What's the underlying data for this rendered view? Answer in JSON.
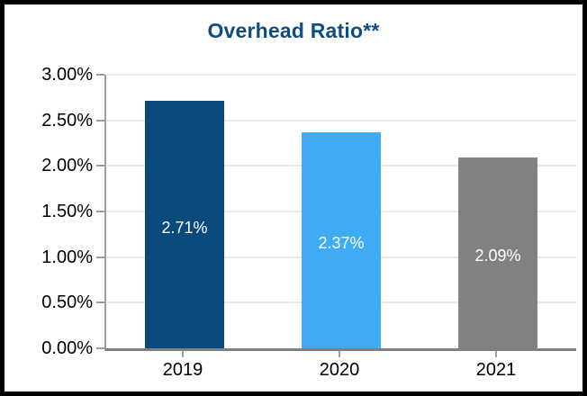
{
  "window": {
    "background_color": "#ffffff",
    "frame_color": "#000000"
  },
  "chart_data": {
    "type": "bar",
    "title": "Overhead Ratio**",
    "title_color": "#0f4c80",
    "categories": [
      "2019",
      "2020",
      "2021"
    ],
    "values": [
      2.71,
      2.37,
      2.09
    ],
    "value_labels": [
      "2.71%",
      "2.37%",
      "2.09%"
    ],
    "bar_colors": [
      "#094a7d",
      "#3fabf5",
      "#818181"
    ],
    "bar_label_color": "#ffffff",
    "xlabel": "",
    "ylabel": "",
    "y_axis": {
      "min": 0,
      "max": 3.0,
      "step": 0.5,
      "tick_labels": [
        "0.00%",
        "0.50%",
        "1.00%",
        "1.50%",
        "2.00%",
        "2.50%",
        "3.00%"
      ]
    },
    "grid": true,
    "gridline_color": "#e9e9e9",
    "axis_color": "#808080",
    "tick_color": "#9c9c9c",
    "legend": false
  }
}
